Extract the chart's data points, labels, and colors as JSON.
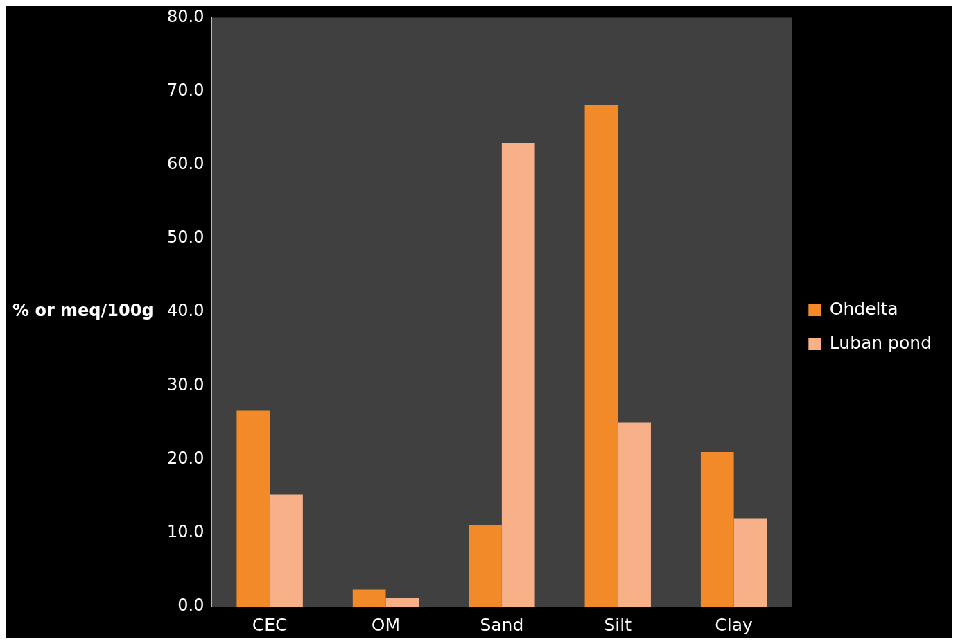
{
  "chart_data": {
    "type": "bar",
    "ylabel": "% or meq/100g",
    "categories": [
      "CEC",
      "OM",
      "Sand",
      "Silt",
      "Clay"
    ],
    "series": [
      {
        "name": "Ohdelta",
        "color": "#f28a2a",
        "values": [
          26.6,
          2.3,
          11.1,
          68.1,
          21.0
        ]
      },
      {
        "name": "Luban pond",
        "color": "#f7b088",
        "values": [
          15.2,
          1.2,
          63.0,
          25.0,
          12.0
        ]
      }
    ],
    "ylim": [
      0,
      80
    ],
    "yticks": [
      {
        "value": 0,
        "label": "0.0"
      },
      {
        "value": 10,
        "label": "10.0"
      },
      {
        "value": 20,
        "label": "20.0"
      },
      {
        "value": 30,
        "label": "30.0"
      },
      {
        "value": 40,
        "label": "40.0"
      },
      {
        "value": 50,
        "label": "50.0"
      },
      {
        "value": 60,
        "label": "60.0"
      },
      {
        "value": 70,
        "label": "70.0"
      },
      {
        "value": 80,
        "label": "80.0"
      }
    ],
    "grid": false,
    "legend": "right"
  }
}
